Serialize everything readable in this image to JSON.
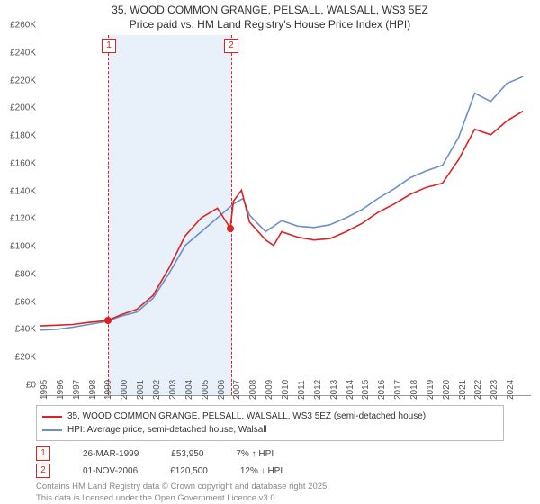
{
  "title_line1": "35, WOOD COMMON GRANGE, PELSALL, WALSALL, WS3 5EZ",
  "title_line2": "Price paid vs. HM Land Registry's House Price Index (HPI)",
  "chart": {
    "type": "line",
    "ylim": [
      0,
      260000
    ],
    "ytick_step": 20000,
    "ytick_labels": [
      "£0",
      "£20K",
      "£40K",
      "£60K",
      "£80K",
      "£100K",
      "£120K",
      "£140K",
      "£160K",
      "£180K",
      "£200K",
      "£220K",
      "£240K",
      "£260K"
    ],
    "x_start": 1995,
    "x_end": 2025.5,
    "xticks": [
      1995,
      1996,
      1997,
      1998,
      1999,
      2000,
      2001,
      2002,
      2003,
      2004,
      2005,
      2006,
      2007,
      2008,
      2009,
      2010,
      2011,
      2012,
      2013,
      2014,
      2015,
      2016,
      2017,
      2018,
      2019,
      2020,
      2021,
      2022,
      2023,
      2024
    ],
    "shade_band": {
      "from": 1999.2,
      "to": 2006.8
    },
    "markers": [
      {
        "id": "1",
        "x": 1999.2,
        "date": "26-MAR-1999",
        "price": "£53,950",
        "delta": "7% ↑ HPI",
        "y": 53950
      },
      {
        "id": "2",
        "x": 2006.8,
        "date": "01-NOV-2006",
        "price": "£120,500",
        "delta": "12% ↓ HPI",
        "y": 120500
      }
    ],
    "colors": {
      "price_line": "#d22",
      "hpi_line": "#6b8fc9",
      "shade": "#e8f1f9",
      "dash": "#d22",
      "grid": "#ffffff"
    },
    "line_width": 1.6,
    "series_price": [
      [
        1995,
        50000
      ],
      [
        1996,
        50500
      ],
      [
        1997,
        51000
      ],
      [
        1998,
        52500
      ],
      [
        1999.2,
        53950
      ],
      [
        2000,
        58000
      ],
      [
        2001,
        62000
      ],
      [
        2002,
        72000
      ],
      [
        2003,
        92000
      ],
      [
        2004,
        115000
      ],
      [
        2005,
        128000
      ],
      [
        2006,
        135000
      ],
      [
        2006.8,
        120500
      ],
      [
        2007,
        140000
      ],
      [
        2007.5,
        148000
      ],
      [
        2008,
        125000
      ],
      [
        2009,
        112000
      ],
      [
        2009.5,
        108000
      ],
      [
        2010,
        118000
      ],
      [
        2011,
        114000
      ],
      [
        2012,
        112000
      ],
      [
        2013,
        113000
      ],
      [
        2014,
        118000
      ],
      [
        2015,
        124000
      ],
      [
        2016,
        132000
      ],
      [
        2017,
        138000
      ],
      [
        2018,
        145000
      ],
      [
        2019,
        150000
      ],
      [
        2020,
        153000
      ],
      [
        2021,
        170000
      ],
      [
        2022,
        192000
      ],
      [
        2023,
        188000
      ],
      [
        2024,
        198000
      ],
      [
        2025,
        205000
      ]
    ],
    "series_hpi": [
      [
        1995,
        47000
      ],
      [
        1996,
        47500
      ],
      [
        1997,
        49000
      ],
      [
        1998,
        51000
      ],
      [
        1999,
        53000
      ],
      [
        2000,
        57000
      ],
      [
        2001,
        60000
      ],
      [
        2002,
        70000
      ],
      [
        2003,
        88000
      ],
      [
        2004,
        108000
      ],
      [
        2005,
        118000
      ],
      [
        2006,
        128000
      ],
      [
        2007,
        138000
      ],
      [
        2007.6,
        142000
      ],
      [
        2008,
        130000
      ],
      [
        2009,
        118000
      ],
      [
        2010,
        126000
      ],
      [
        2011,
        122000
      ],
      [
        2012,
        121000
      ],
      [
        2013,
        123000
      ],
      [
        2014,
        128000
      ],
      [
        2015,
        134000
      ],
      [
        2016,
        142000
      ],
      [
        2017,
        149000
      ],
      [
        2018,
        157000
      ],
      [
        2019,
        162000
      ],
      [
        2020,
        166000
      ],
      [
        2021,
        186000
      ],
      [
        2022,
        218000
      ],
      [
        2023,
        212000
      ],
      [
        2024,
        225000
      ],
      [
        2025,
        230000
      ]
    ]
  },
  "legend": {
    "price": "35, WOOD COMMON GRANGE, PELSALL, WALSALL, WS3 5EZ (semi-detached house)",
    "hpi": "HPI: Average price, semi-detached house, Walsall"
  },
  "license_line1": "Contains HM Land Registry data © Crown copyright and database right 2025.",
  "license_line2": "This data is licensed under the Open Government Licence v3.0."
}
